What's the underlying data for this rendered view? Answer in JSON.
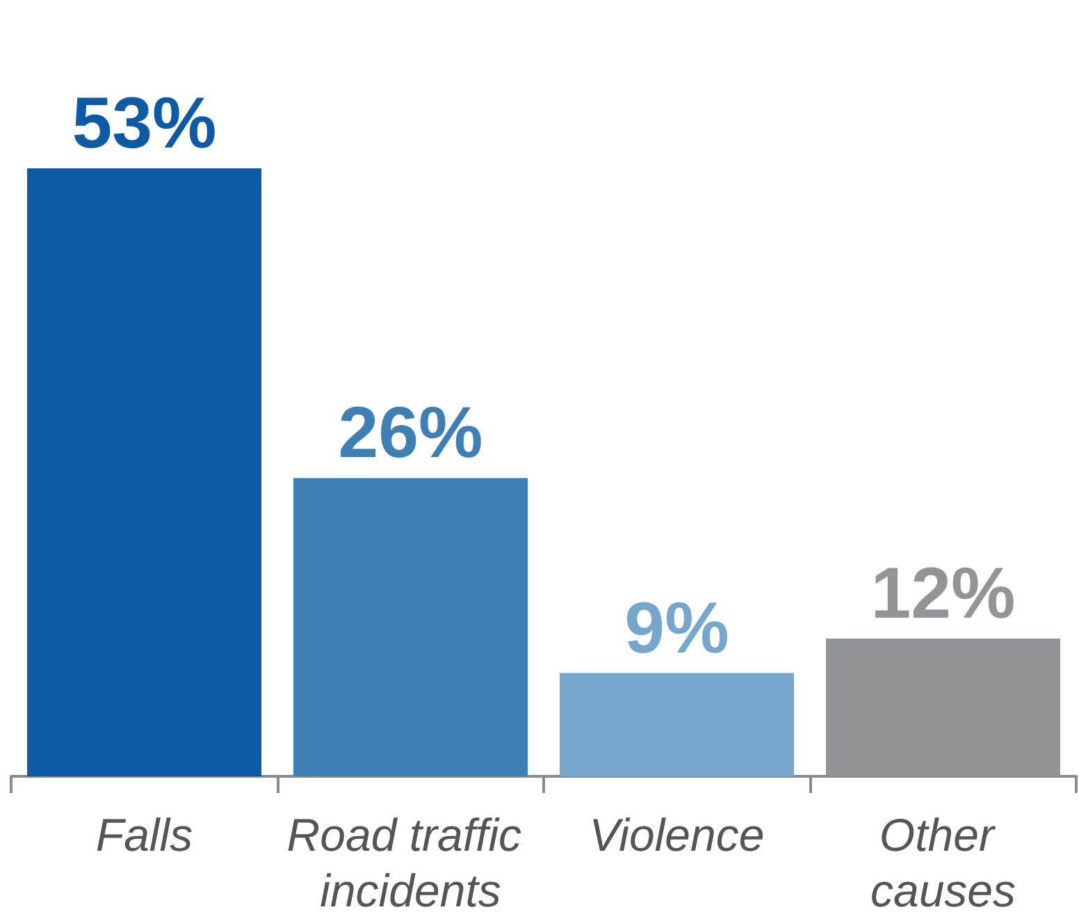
{
  "chart_data": {
    "type": "bar",
    "categories": [
      "Falls",
      "Road traffic incidents",
      "Violence",
      "Other causes"
    ],
    "values": [
      53,
      26,
      9,
      12
    ],
    "colors": [
      "#0e5ba5",
      "#3e7fb4",
      "#74a7cb",
      "#929597"
    ],
    "value_labels": [
      "53%",
      "26%",
      "9%",
      "12%"
    ]
  }
}
